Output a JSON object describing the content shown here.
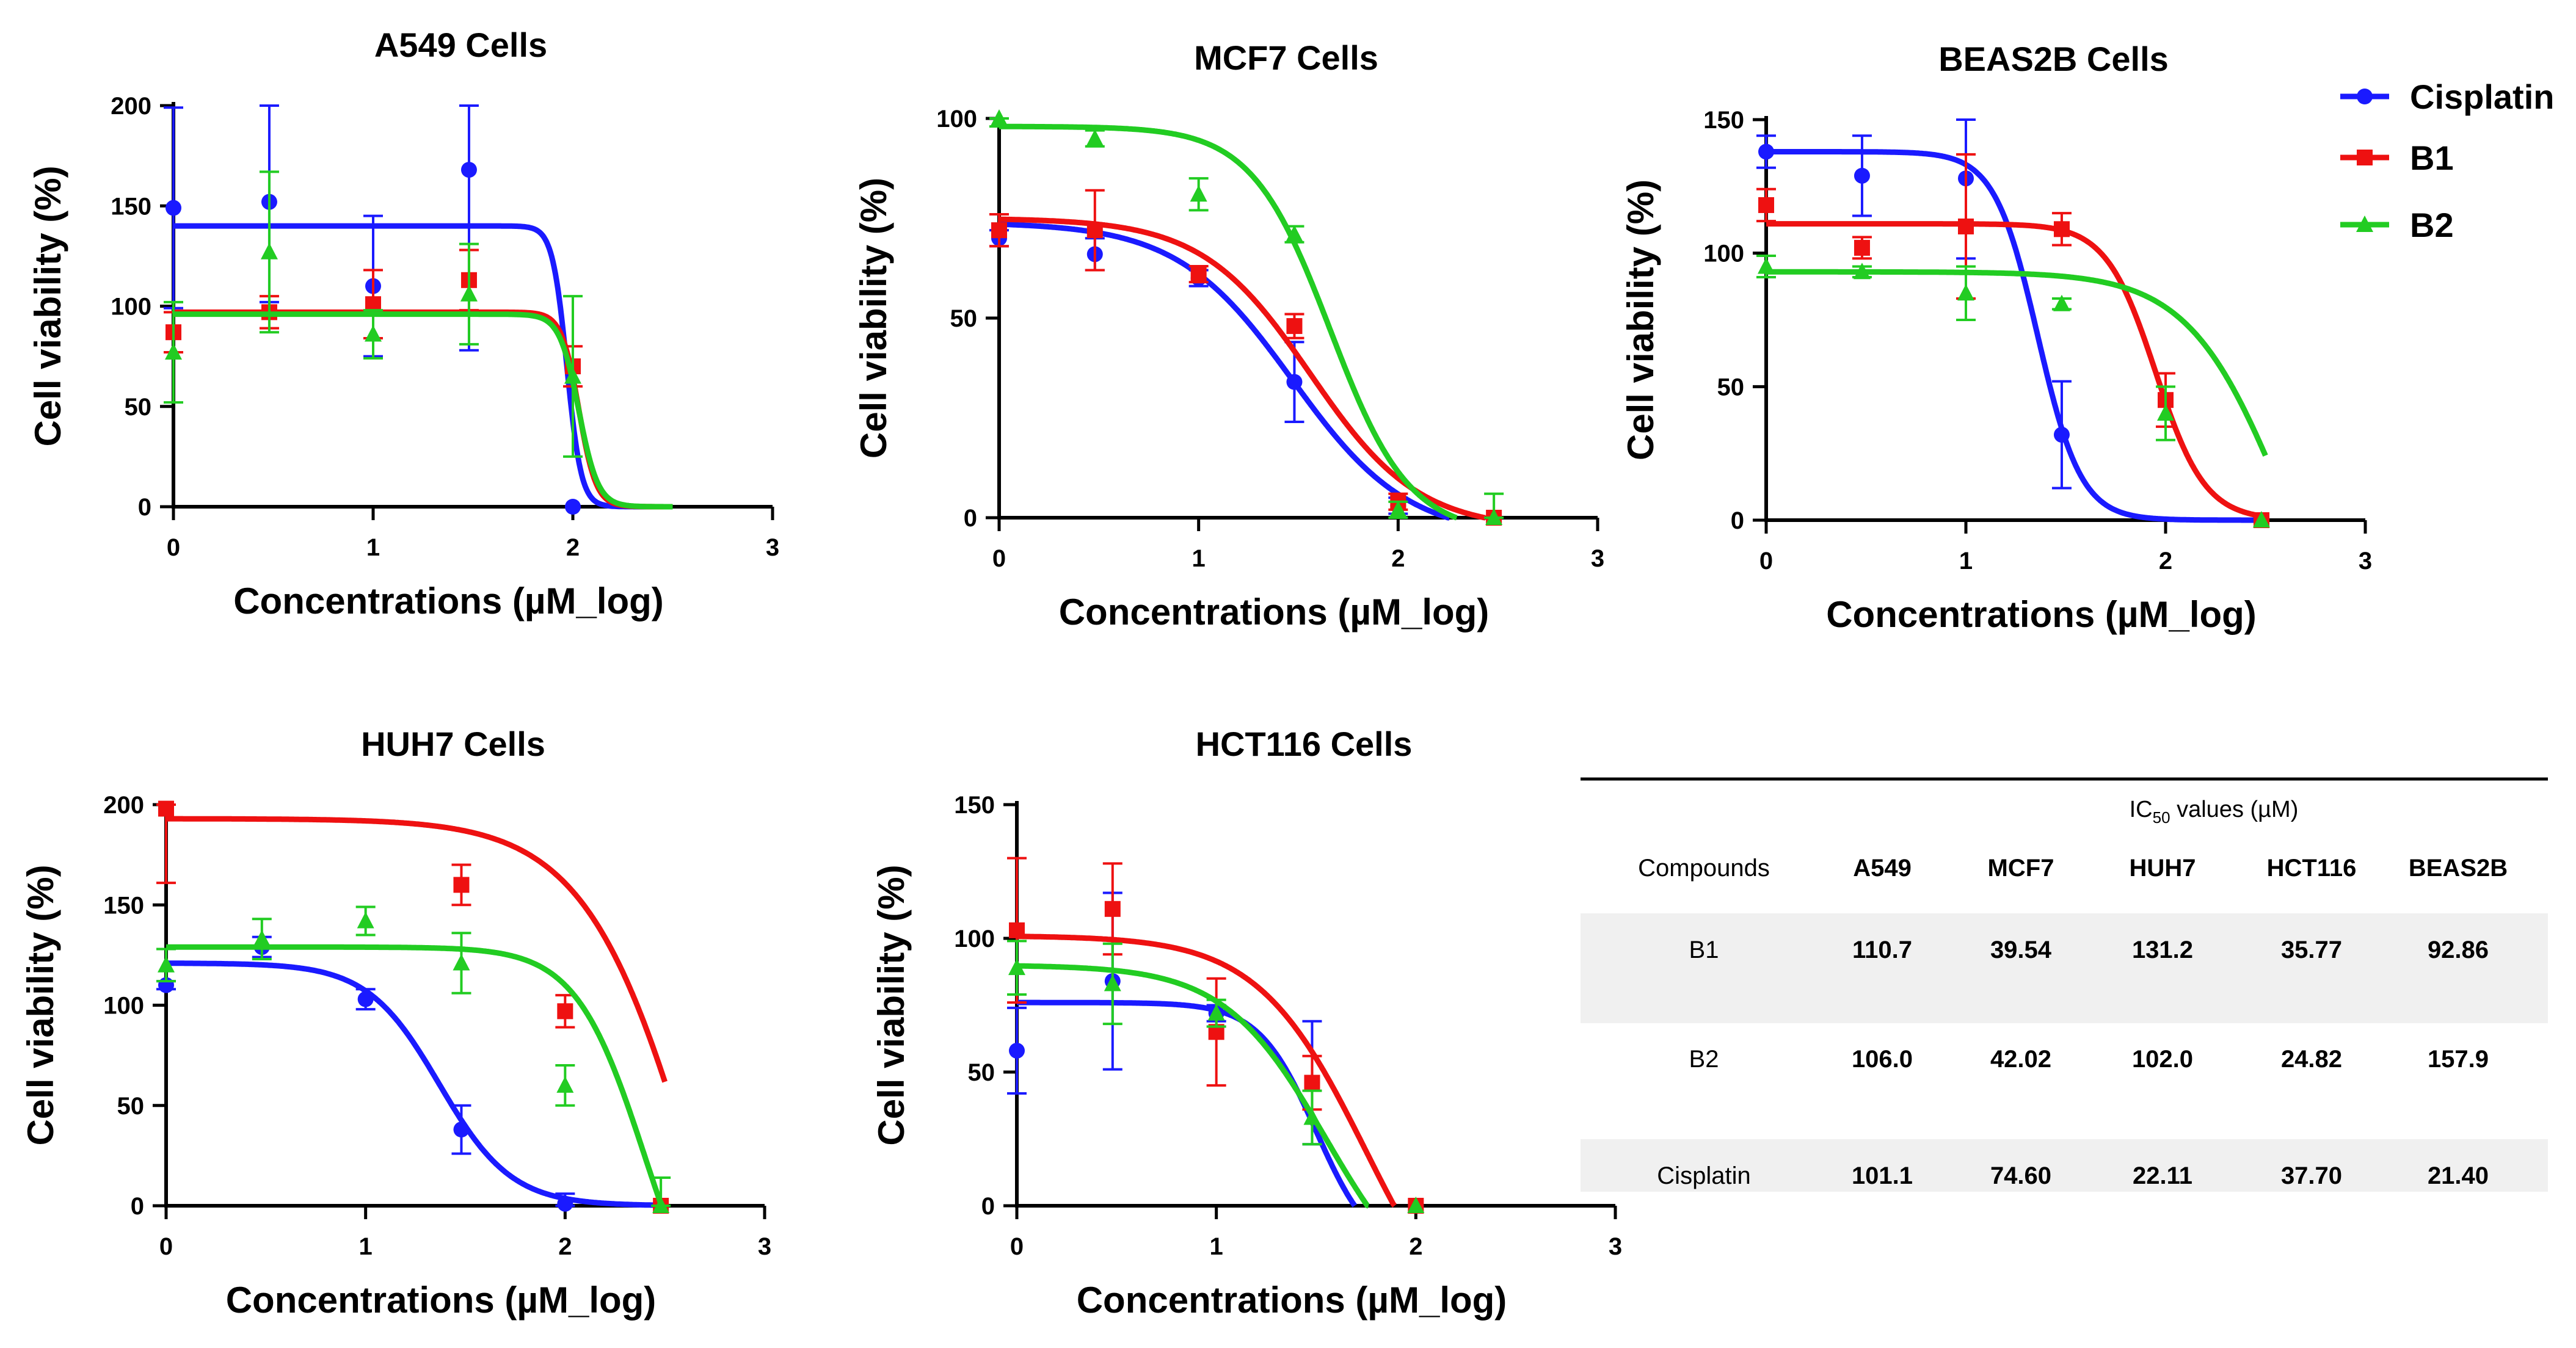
{
  "colors": {
    "cisplatin": "#1a1aff",
    "b1": "#ee1111",
    "b2": "#22cc22",
    "axis": "#000000",
    "table_band": "#f0f0f0"
  },
  "legend": {
    "items": [
      {
        "label": "Cisplatin",
        "key": "cisplatin",
        "marker": "circle"
      },
      {
        "label": "B1",
        "key": "b1",
        "marker": "square"
      },
      {
        "label": "B2",
        "key": "b2",
        "marker": "triangle"
      }
    ]
  },
  "chart_data": [
    {
      "type": "line",
      "title": "A549 Cells",
      "xlabel": "Concentrations (µM_log)",
      "ylabel": "Cell viability (%)",
      "xlim": [
        0,
        3
      ],
      "ylim": [
        0,
        200
      ],
      "xticks": [
        0,
        1,
        2,
        3
      ],
      "yticks": [
        0,
        50,
        100,
        150,
        200
      ],
      "series": [
        {
          "name": "Cisplatin",
          "key": "cisplatin",
          "points": [
            {
              "x": 0,
              "y": 149,
              "err": 50
            },
            {
              "x": 0.48,
              "y": 152,
              "err": 50
            },
            {
              "x": 1,
              "y": 110,
              "err": 35
            },
            {
              "x": 1.48,
              "y": 168,
              "err": 90
            },
            {
              "x": 2,
              "y": 0,
              "err": 0
            }
          ],
          "fit": {
            "top": 140,
            "bottom": 0,
            "logic50": 1.97,
            "hill": -12
          }
        },
        {
          "name": "B1",
          "key": "b1",
          "points": [
            {
              "x": 0,
              "y": 87,
              "err": 10
            },
            {
              "x": 0.48,
              "y": 97,
              "err": 8
            },
            {
              "x": 1,
              "y": 101,
              "err": 17
            },
            {
              "x": 1.48,
              "y": 113,
              "err": 15
            },
            {
              "x": 2,
              "y": 70,
              "err": 10
            }
          ],
          "fit": {
            "top": 97,
            "bottom": 0,
            "logic50": 2.03,
            "hill": -10
          }
        },
        {
          "name": "B2",
          "key": "b2",
          "points": [
            {
              "x": 0,
              "y": 77,
              "err": 25
            },
            {
              "x": 0.48,
              "y": 127,
              "err": 40
            },
            {
              "x": 1,
              "y": 86,
              "err": 12
            },
            {
              "x": 1.48,
              "y": 106,
              "err": 25
            },
            {
              "x": 2,
              "y": 65,
              "err": 40
            }
          ],
          "fit": {
            "top": 96,
            "bottom": 0,
            "logic50": 2.03,
            "hill": -9
          }
        }
      ]
    },
    {
      "type": "line",
      "title": "MCF7 Cells",
      "xlabel": "Concentrations (µM_log)",
      "ylabel": "Cell viability (%)",
      "xlim": [
        0,
        3
      ],
      "ylim": [
        0,
        100
      ],
      "xticks": [
        0,
        1,
        2,
        3
      ],
      "yticks": [
        0,
        50,
        100
      ],
      "series": [
        {
          "name": "Cisplatin",
          "key": "cisplatin",
          "points": [
            {
              "x": 0,
              "y": 70,
              "err": 2
            },
            {
              "x": 0.48,
              "y": 66,
              "err": 4
            },
            {
              "x": 1,
              "y": 60,
              "err": 2
            },
            {
              "x": 1.48,
              "y": 34,
              "err": 10
            },
            {
              "x": 2,
              "y": 3,
              "err": 2
            }
          ],
          "fit": {
            "top": 74,
            "bottom": -5,
            "logic50": 1.47,
            "hill": -1.5
          }
        },
        {
          "name": "B1",
          "key": "b1",
          "points": [
            {
              "x": 0,
              "y": 72,
              "err": 4
            },
            {
              "x": 0.48,
              "y": 72,
              "err": 10
            },
            {
              "x": 1,
              "y": 61,
              "err": 2
            },
            {
              "x": 1.48,
              "y": 48,
              "err": 3
            },
            {
              "x": 2,
              "y": 4,
              "err": 2
            },
            {
              "x": 2.48,
              "y": 0,
              "err": 0
            }
          ],
          "fit": {
            "top": 75,
            "bottom": -3,
            "logic50": 1.56,
            "hill": -1.6
          }
        },
        {
          "name": "B2",
          "key": "b2",
          "points": [
            {
              "x": 0,
              "y": 100,
              "err": 2
            },
            {
              "x": 0.48,
              "y": 95,
              "err": 2
            },
            {
              "x": 1,
              "y": 81,
              "err": 4
            },
            {
              "x": 1.48,
              "y": 71,
              "err": 2
            },
            {
              "x": 2,
              "y": 2,
              "err": 2
            },
            {
              "x": 2.48,
              "y": 0,
              "err": 6
            }
          ],
          "fit": {
            "top": 98,
            "bottom": -4,
            "logic50": 1.66,
            "hill": -2.2
          }
        }
      ]
    },
    {
      "type": "line",
      "title": "BEAS2B Cells",
      "xlabel": "Concentrations (µM_log)",
      "ylabel": "Cell viability (%)",
      "xlim": [
        0,
        3
      ],
      "ylim": [
        0,
        150
      ],
      "xticks": [
        0,
        1,
        2,
        3
      ],
      "yticks": [
        0,
        50,
        100,
        150
      ],
      "series": [
        {
          "name": "Cisplatin",
          "key": "cisplatin",
          "points": [
            {
              "x": 0,
              "y": 138,
              "err": 6
            },
            {
              "x": 0.48,
              "y": 129,
              "err": 15
            },
            {
              "x": 1,
              "y": 128,
              "err": 30
            },
            {
              "x": 1.48,
              "y": 32,
              "err": 20
            },
            {
              "x": 2.48,
              "y": 0,
              "err": 0
            }
          ],
          "fit": {
            "top": 138,
            "bottom": 0,
            "logic50": 1.36,
            "hill": -4
          }
        },
        {
          "name": "B1",
          "key": "b1",
          "points": [
            {
              "x": 0,
              "y": 118,
              "err": 6
            },
            {
              "x": 0.48,
              "y": 102,
              "err": 4
            },
            {
              "x": 1,
              "y": 110,
              "err": 27
            },
            {
              "x": 1.48,
              "y": 109,
              "err": 6
            },
            {
              "x": 2,
              "y": 45,
              "err": 10
            },
            {
              "x": 2.48,
              "y": 0,
              "err": 0
            }
          ],
          "fit": {
            "top": 111,
            "bottom": 0,
            "logic50": 1.95,
            "hill": -3.5
          }
        },
        {
          "name": "B2",
          "key": "b2",
          "points": [
            {
              "x": 0,
              "y": 95,
              "err": 4
            },
            {
              "x": 0.48,
              "y": 93,
              "err": 2
            },
            {
              "x": 1,
              "y": 85,
              "err": 10
            },
            {
              "x": 1.48,
              "y": 81,
              "err": 2
            },
            {
              "x": 2,
              "y": 40,
              "err": 10
            },
            {
              "x": 2.48,
              "y": 0,
              "err": 0
            }
          ],
          "fit": {
            "top": 93,
            "bottom": -80,
            "logic50": 2.6,
            "hill": -1.8
          }
        }
      ]
    },
    {
      "type": "line",
      "title": "HUH7 Cells",
      "xlabel": "Concentrations (µM_log)",
      "ylabel": "Cell viability (%)",
      "xlim": [
        0,
        3
      ],
      "ylim": [
        0,
        200
      ],
      "xticks": [
        0,
        1,
        2,
        3
      ],
      "yticks": [
        0,
        50,
        100,
        150,
        200
      ],
      "series": [
        {
          "name": "Cisplatin",
          "key": "cisplatin",
          "points": [
            {
              "x": 0,
              "y": 110,
              "err": 2
            },
            {
              "x": 0.48,
              "y": 129,
              "err": 5
            },
            {
              "x": 1,
              "y": 103,
              "err": 5
            },
            {
              "x": 1.48,
              "y": 38,
              "err": 12
            },
            {
              "x": 2,
              "y": 1,
              "err": 5
            }
          ],
          "fit": {
            "top": 121,
            "bottom": 0,
            "logic50": 1.37,
            "hill": -2.4
          }
        },
        {
          "name": "B1",
          "key": "b1",
          "points": [
            {
              "x": 0,
              "y": 198,
              "err": 37
            },
            {
              "x": 1.48,
              "y": 160,
              "err": 10
            },
            {
              "x": 2,
              "y": 97,
              "err": 8
            },
            {
              "x": 2.48,
              "y": 0,
              "err": 0
            }
          ],
          "fit": {
            "top": 193,
            "bottom": -200,
            "logic50": 2.7,
            "hill": -1.5
          }
        },
        {
          "name": "B2",
          "key": "b2",
          "points": [
            {
              "x": 0,
              "y": 120,
              "err": 8
            },
            {
              "x": 0.48,
              "y": 133,
              "err": 10
            },
            {
              "x": 1,
              "y": 142,
              "err": 7
            },
            {
              "x": 1.48,
              "y": 121,
              "err": 15
            },
            {
              "x": 2,
              "y": 60,
              "err": 10
            },
            {
              "x": 2.48,
              "y": 0,
              "err": 14
            }
          ],
          "fit": {
            "top": 129,
            "bottom": -80,
            "logic50": 2.4,
            "hill": -2.5
          }
        }
      ]
    },
    {
      "type": "line",
      "title": "HCT116 Cells",
      "xlabel": "Concentrations (µM_log)",
      "ylabel": "Cell viability (%)",
      "xlim": [
        0,
        3
      ],
      "ylim": [
        0,
        150
      ],
      "xticks": [
        0,
        1,
        2,
        3
      ],
      "yticks": [
        0,
        50,
        100,
        150
      ],
      "series": [
        {
          "name": "Cisplatin",
          "key": "cisplatin",
          "points": [
            {
              "x": 0,
              "y": 58,
              "err": 16
            },
            {
              "x": 0.48,
              "y": 84,
              "err": 33
            },
            {
              "x": 1,
              "y": 72,
              "err": 3
            },
            {
              "x": 1.48,
              "y": 46,
              "err": 23
            },
            {
              "x": 2,
              "y": 0,
              "err": 0
            }
          ],
          "fit": {
            "top": 76,
            "bottom": -20,
            "logic50": 1.5,
            "hill": -3
          }
        },
        {
          "name": "B1",
          "key": "b1",
          "points": [
            {
              "x": 0,
              "y": 103,
              "err": 27
            },
            {
              "x": 0.48,
              "y": 111,
              "err": 17
            },
            {
              "x": 1,
              "y": 65,
              "err": 20
            },
            {
              "x": 1.48,
              "y": 46,
              "err": 10
            },
            {
              "x": 2,
              "y": 0,
              "err": 0
            }
          ],
          "fit": {
            "top": 101,
            "bottom": -60,
            "logic50": 1.75,
            "hill": -1.6
          }
        },
        {
          "name": "B2",
          "key": "b2",
          "points": [
            {
              "x": 0,
              "y": 89,
              "err": 10
            },
            {
              "x": 0.48,
              "y": 83,
              "err": 15
            },
            {
              "x": 1,
              "y": 72,
              "err": 5
            },
            {
              "x": 1.48,
              "y": 33,
              "err": 10
            },
            {
              "x": 2,
              "y": 0,
              "err": 0
            }
          ],
          "fit": {
            "top": 90,
            "bottom": -40,
            "logic50": 1.55,
            "hill": -1.7
          }
        }
      ]
    }
  ],
  "ic50_table": {
    "header_prefix": "IC",
    "header_sub": "50",
    "header_suffix": " values (µM)",
    "columns": [
      "Compounds",
      "A549",
      "MCF7",
      "HUH7",
      "HCT116",
      "BEAS2B"
    ],
    "rows": [
      [
        "B1",
        "110.7",
        "39.54",
        "131.2",
        "35.77",
        "92.86"
      ],
      [
        "B2",
        "106.0",
        "42.02",
        "102.0",
        "24.82",
        "157.9"
      ],
      [
        "Cisplatin",
        "101.1",
        "74.60",
        "22.11",
        "37.70",
        "21.40"
      ]
    ]
  }
}
